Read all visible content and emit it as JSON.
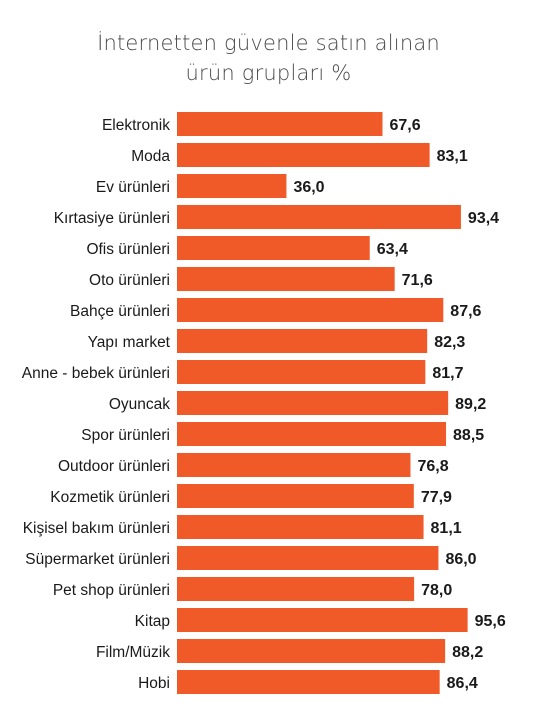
{
  "title_line1": "İnternetten güvenle satın alınan",
  "title_line2": "ürün grupları %",
  "colors": {
    "bar": "#f05a28"
  },
  "chart_data": {
    "type": "bar",
    "orientation": "horizontal",
    "title": "İnternetten güvenle satın alınan ürün grupları %",
    "categories": [
      "Elektronik",
      "Moda",
      "Ev ürünleri",
      "Kırtasiye ürünleri",
      "Ofis ürünleri",
      "Oto ürünleri",
      "Bahçe ürünleri",
      "Yapı market",
      "Anne - bebek ürünleri",
      "Oyuncak",
      "Spor ürünleri",
      "Outdoor ürünleri",
      "Kozmetik ürünleri",
      "Kişisel bakım ürünleri",
      "Süpermarket ürünleri",
      "Pet shop ürünleri",
      "Kitap",
      "Film/Müzik",
      "Hobi"
    ],
    "values": [
      67.6,
      83.1,
      36.0,
      93.4,
      63.4,
      71.6,
      87.6,
      82.3,
      81.7,
      89.2,
      88.5,
      76.8,
      77.9,
      81.1,
      86.0,
      78.0,
      95.6,
      88.2,
      86.4
    ],
    "value_labels": [
      "67,6",
      "83,1",
      "36,0",
      "93,4",
      "63,4",
      "71,6",
      "87,6",
      "82,3",
      "81,7",
      "89,2",
      "88,5",
      "76,8",
      "77,9",
      "81,1",
      "86,0",
      "78,0",
      "95,6",
      "88,2",
      "86,4"
    ],
    "xlim": [
      0,
      100
    ],
    "grid": false,
    "legend": "none"
  }
}
